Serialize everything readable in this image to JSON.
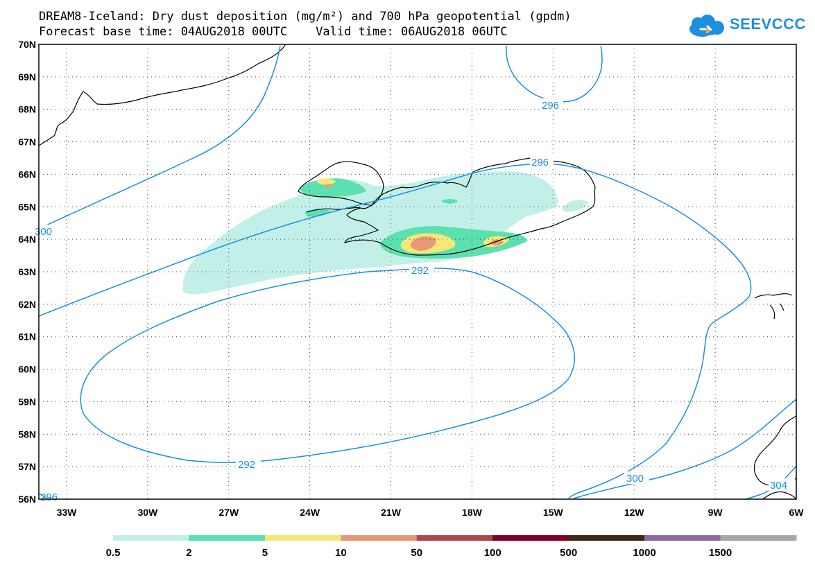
{
  "title": {
    "line1": "DREAM8-Iceland: Dry dust deposition (mg/m²) and 700 hPa geopotential (gpdm)",
    "line2": "Forecast base time: 04AUG2018 00UTC    Valid time: 06AUG2018 06UTC"
  },
  "logo": {
    "text": "SEEVCCC",
    "color": "#1f8fe0"
  },
  "map": {
    "lat_labels": [
      "70N",
      "69N",
      "68N",
      "67N",
      "66N",
      "65N",
      "64N",
      "63N",
      "62N",
      "61N",
      "60N",
      "59N",
      "58N",
      "57N",
      "56N"
    ],
    "lon_labels": [
      "33W",
      "30W",
      "27W",
      "24W",
      "21W",
      "18W",
      "15W",
      "12W",
      "9W",
      "6W"
    ],
    "contour_color": "#1a8fe0",
    "contour_labels": [
      "296",
      "296",
      "292",
      "292",
      "300",
      "300",
      "304",
      "296"
    ],
    "coast_color": "#000000",
    "dust_region": "Iceland"
  },
  "legend": {
    "labels": [
      "0.5",
      "2",
      "5",
      "10",
      "50",
      "100",
      "500",
      "1000",
      "1500"
    ],
    "colors": [
      "#c2f0e8",
      "#5ce0b0",
      "#f5e878",
      "#e89878",
      "#a84848",
      "#80002a",
      "#3a2818",
      "#8c6aa0",
      "#a8a8a8"
    ]
  }
}
